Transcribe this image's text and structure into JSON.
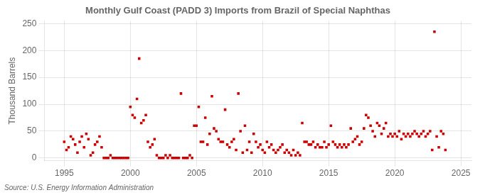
{
  "chart_data": {
    "type": "scatter",
    "title": "Monthly Gulf Coast (PADD 3) Imports from Brazil of Special Naphthas",
    "ylabel": "Thousand Barrels",
    "source": "Source: U.S. Energy Information Administration",
    "color": "#cc0000",
    "marker": "square",
    "grid": true,
    "xlim": [
      1993.5,
      2025.8
    ],
    "ylim": [
      -5,
      255
    ],
    "xticks": [
      1995,
      2000,
      2005,
      2010,
      2015,
      2020,
      2025
    ],
    "yticks": [
      0,
      50,
      100,
      150,
      200,
      250
    ],
    "x": [
      1995.0,
      1995.17,
      1995.33,
      1995.5,
      1995.67,
      1995.83,
      1996.0,
      1996.17,
      1996.33,
      1996.5,
      1996.67,
      1996.83,
      1997.0,
      1997.17,
      1997.33,
      1997.5,
      1997.67,
      1997.83,
      1998.0,
      1998.17,
      1998.33,
      1998.5,
      1998.67,
      1998.83,
      1999.0,
      1999.17,
      1999.33,
      1999.5,
      1999.67,
      1999.83,
      2000.0,
      2000.17,
      2000.33,
      2000.5,
      2000.67,
      2000.83,
      2001.0,
      2001.17,
      2001.33,
      2001.5,
      2001.67,
      2001.83,
      2002.0,
      2002.17,
      2002.33,
      2002.5,
      2002.67,
      2002.83,
      2003.0,
      2003.17,
      2003.33,
      2003.5,
      2003.67,
      2003.83,
      2004.0,
      2004.17,
      2004.33,
      2004.5,
      2004.67,
      2004.83,
      2005.0,
      2005.17,
      2005.33,
      2005.5,
      2005.67,
      2005.83,
      2006.0,
      2006.17,
      2006.33,
      2006.5,
      2006.67,
      2006.83,
      2007.0,
      2007.17,
      2007.33,
      2007.5,
      2007.67,
      2007.83,
      2008.0,
      2008.17,
      2008.33,
      2008.5,
      2008.67,
      2008.83,
      2009.0,
      2009.17,
      2009.33,
      2009.5,
      2009.67,
      2009.83,
      2010.0,
      2010.17,
      2010.33,
      2010.5,
      2010.67,
      2010.83,
      2011.0,
      2011.17,
      2011.33,
      2011.5,
      2011.67,
      2011.83,
      2012.0,
      2012.17,
      2012.33,
      2012.5,
      2012.67,
      2012.83,
      2013.0,
      2013.17,
      2013.33,
      2013.5,
      2013.67,
      2013.83,
      2014.0,
      2014.17,
      2014.33,
      2014.5,
      2014.67,
      2014.83,
      2015.0,
      2015.17,
      2015.33,
      2015.5,
      2015.67,
      2015.83,
      2016.0,
      2016.17,
      2016.33,
      2016.5,
      2016.67,
      2016.83,
      2017.0,
      2017.17,
      2017.33,
      2017.5,
      2017.67,
      2017.83,
      2018.0,
      2018.17,
      2018.33,
      2018.5,
      2018.67,
      2018.83,
      2019.0,
      2019.17,
      2019.33,
      2019.5,
      2019.67,
      2019.83,
      2020.0,
      2020.17,
      2020.33,
      2020.5,
      2020.67,
      2020.83,
      2021.0,
      2021.17,
      2021.33,
      2021.5,
      2021.67,
      2021.83,
      2022.0,
      2022.17,
      2022.33,
      2022.5,
      2022.67,
      2022.83,
      2023.0,
      2023.17,
      2023.33,
      2023.5,
      2023.67,
      2023.83
    ],
    "values": [
      30,
      15,
      20,
      40,
      35,
      25,
      10,
      30,
      40,
      20,
      45,
      35,
      5,
      10,
      25,
      30,
      40,
      20,
      0,
      0,
      0,
      5,
      0,
      0,
      0,
      0,
      0,
      0,
      0,
      0,
      95,
      80,
      75,
      110,
      185,
      65,
      70,
      80,
      30,
      20,
      25,
      35,
      5,
      0,
      0,
      0,
      5,
      0,
      5,
      0,
      0,
      0,
      0,
      120,
      0,
      0,
      0,
      5,
      0,
      60,
      60,
      95,
      30,
      30,
      75,
      25,
      45,
      115,
      55,
      50,
      35,
      30,
      30,
      90,
      25,
      20,
      30,
      35,
      15,
      120,
      50,
      10,
      60,
      15,
      30,
      10,
      45,
      30,
      20,
      25,
      15,
      10,
      30,
      20,
      25,
      15,
      10,
      15,
      20,
      25,
      10,
      15,
      10,
      5,
      15,
      5,
      10,
      5,
      65,
      30,
      30,
      25,
      25,
      30,
      20,
      25,
      20,
      20,
      30,
      20,
      25,
      60,
      30,
      25,
      20,
      25,
      20,
      25,
      20,
      25,
      55,
      30,
      35,
      40,
      25,
      30,
      55,
      80,
      75,
      60,
      50,
      40,
      65,
      60,
      45,
      55,
      65,
      40,
      45,
      40,
      45,
      40,
      50,
      35,
      45,
      40,
      45,
      40,
      45,
      50,
      45,
      40,
      45,
      50,
      40,
      45,
      50,
      15,
      235,
      40,
      20,
      50,
      45,
      15
    ]
  }
}
